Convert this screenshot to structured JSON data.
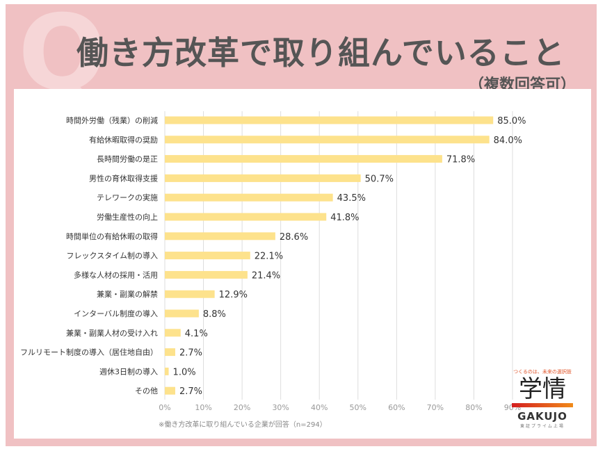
{
  "header": {
    "q_mark": "Q",
    "title": "働き方改革で取り組んでいること",
    "subtitle": "（複数回答可）"
  },
  "footnote": "※働き方改革に取り組んでいる企業が回答（n=294）",
  "logo": {
    "tagline": "つくるのは、未来の選択肢",
    "kanji": "学情",
    "name": "GAKUJO",
    "sub": "東証プライム上場"
  },
  "colors": {
    "bar": "#fde28c",
    "grid": "#dddddd",
    "frame": "#f0c1c3"
  },
  "chart_data": {
    "type": "bar",
    "orientation": "horizontal",
    "title": "働き方改革で取り組んでいること（複数回答可）",
    "categories": [
      "時間外労働（残業）の削減",
      "有給休暇取得の奨励",
      "長時間労働の是正",
      "男性の育休取得支援",
      "テレワークの実施",
      "労働生産性の向上",
      "時間単位の有給休暇の取得",
      "フレックスタイム制の導入",
      "多様な人材の採用・活用",
      "兼業・副業の解禁",
      "インターバル制度の導入",
      "兼業・副業人材の受け入れ",
      "フルリモート制度の導入（居住地自由）",
      "週休3日制の導入",
      "その他"
    ],
    "values": [
      85.0,
      84.0,
      71.8,
      50.7,
      43.5,
      41.8,
      28.6,
      22.1,
      21.4,
      12.9,
      8.8,
      4.1,
      2.7,
      1.0,
      2.7
    ],
    "value_labels": [
      "85.0%",
      "84.0%",
      "71.8%",
      "50.7%",
      "43.5%",
      "41.8%",
      "28.6%",
      "22.1%",
      "21.4%",
      "12.9%",
      "8.8%",
      "4.1%",
      "2.7%",
      "1.0%",
      "2.7%"
    ],
    "xticks": [
      "0%",
      "10%",
      "20%",
      "30%",
      "40%",
      "50%",
      "60%",
      "70%",
      "80%",
      "90%"
    ],
    "xlim": [
      0,
      90
    ],
    "grid": true
  }
}
